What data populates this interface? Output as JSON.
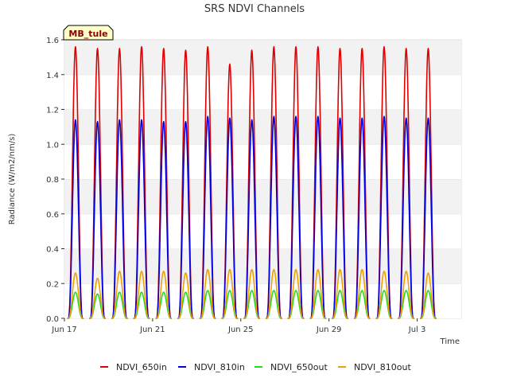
{
  "chart_data": {
    "type": "line",
    "title": "SRS NDVI Channels",
    "xlabel": "Time",
    "ylabel": "Radiance (W/m2/nm/s)",
    "ylim": [
      0,
      1.6
    ],
    "yticks": [
      "0.0",
      "0.2",
      "0.4",
      "0.6",
      "0.8",
      "1.0",
      "1.2",
      "1.4",
      "1.6"
    ],
    "xlim": [
      0,
      18
    ],
    "xticks": [
      {
        "value": 0,
        "label": "Jun 17"
      },
      {
        "value": 4,
        "label": "Jun 21"
      },
      {
        "value": 8,
        "label": "Jun 25"
      },
      {
        "value": 12,
        "label": "Jun 29"
      },
      {
        "value": 16,
        "label": "Jul 3"
      }
    ],
    "grid": "horizontal bands",
    "legend_position": "bottom",
    "badge": "MB_tule",
    "day_peaks": {
      "days": [
        0.5,
        1.5,
        2.5,
        3.5,
        4.5,
        5.5,
        6.5,
        7.5,
        8.5,
        9.5,
        10.5,
        11.5,
        12.5,
        13.5,
        14.5,
        15.5,
        16.5
      ],
      "series": [
        {
          "name": "NDVI_650in",
          "color": "#e00000",
          "peaks": [
            1.56,
            1.55,
            1.55,
            1.56,
            1.55,
            1.54,
            1.56,
            1.46,
            1.54,
            1.56,
            1.56,
            1.56,
            1.55,
            1.55,
            1.56,
            1.55,
            1.55
          ]
        },
        {
          "name": "NDVI_810in",
          "color": "#0000e0",
          "peaks": [
            1.14,
            1.13,
            1.14,
            1.14,
            1.13,
            1.13,
            1.16,
            1.15,
            1.14,
            1.16,
            1.16,
            1.16,
            1.15,
            1.15,
            1.16,
            1.15,
            1.15
          ]
        },
        {
          "name": "NDVI_650out",
          "color": "#22dd22",
          "peaks": [
            0.15,
            0.14,
            0.15,
            0.15,
            0.15,
            0.15,
            0.16,
            0.16,
            0.16,
            0.16,
            0.16,
            0.16,
            0.16,
            0.16,
            0.16,
            0.16,
            0.16
          ]
        },
        {
          "name": "NDVI_810out",
          "color": "#f0a000",
          "peaks": [
            0.26,
            0.23,
            0.27,
            0.27,
            0.27,
            0.26,
            0.28,
            0.28,
            0.28,
            0.28,
            0.28,
            0.28,
            0.28,
            0.28,
            0.27,
            0.27,
            0.26
          ]
        }
      ]
    }
  }
}
